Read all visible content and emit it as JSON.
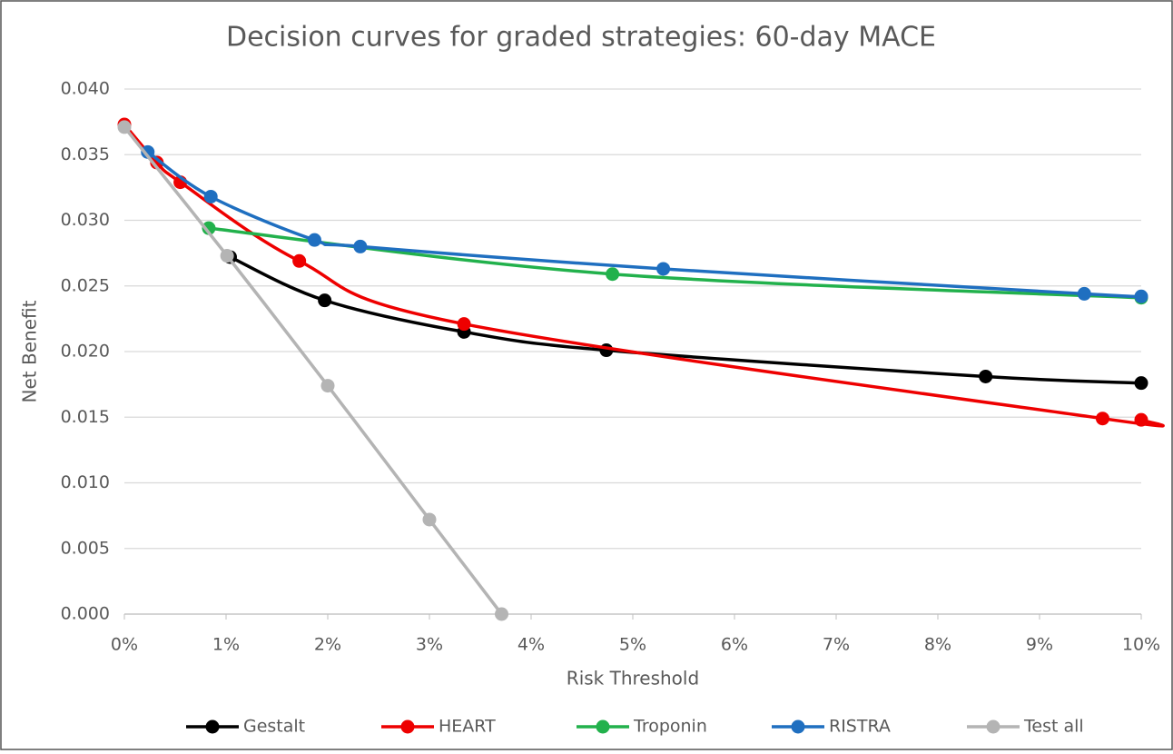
{
  "chart_data": {
    "type": "line",
    "title": "Decision curves for graded strategies: 60-day MACE",
    "x_label": "Risk Threshold",
    "y_label": "Net Benefit",
    "xlim": [
      0,
      10
    ],
    "xticks": [
      {
        "value": 0,
        "label": "0%"
      },
      {
        "value": 1,
        "label": "1%"
      },
      {
        "value": 2,
        "label": "2%"
      },
      {
        "value": 3,
        "label": "3%"
      },
      {
        "value": 4,
        "label": "4%"
      },
      {
        "value": 5,
        "label": "5%"
      },
      {
        "value": 6,
        "label": "6%"
      },
      {
        "value": 7,
        "label": "7%"
      },
      {
        "value": 8,
        "label": "8%"
      },
      {
        "value": 9,
        "label": "9%"
      },
      {
        "value": 10,
        "label": "10%"
      }
    ],
    "ylim": [
      0,
      0.04
    ],
    "yticks": [
      {
        "value": 0,
        "label": "0.000"
      },
      {
        "value": 0.005,
        "label": "0.005"
      },
      {
        "value": 0.01,
        "label": "0.010"
      },
      {
        "value": 0.015,
        "label": "0.015"
      },
      {
        "value": 0.02,
        "label": "0.020"
      },
      {
        "value": 0.025,
        "label": "0.025"
      },
      {
        "value": 0.03,
        "label": "0.030"
      },
      {
        "value": 0.035,
        "label": "0.035"
      },
      {
        "value": 0.04,
        "label": "0.040"
      }
    ],
    "grid": true,
    "legend": "bottom",
    "series": [
      {
        "name": "Gestalt",
        "color": "#000000",
        "x": [
          1.04,
          1.97,
          3.34,
          4.74,
          8.47,
          10
        ],
        "values": [
          0.0272,
          0.0239,
          0.0215,
          0.0201,
          0.0181,
          0.0176
        ]
      },
      {
        "name": "HEART",
        "color": "#ee0000",
        "x": [
          0,
          0.32,
          0.55,
          1.72,
          3.34,
          9.62,
          10
        ],
        "values": [
          0.0373,
          0.0344,
          0.0329,
          0.0269,
          0.0221,
          0.0149,
          0.0148
        ]
      },
      {
        "name": "Troponin",
        "color": "#22b14c",
        "x": [
          0.83,
          4.8,
          10
        ],
        "values": [
          0.0294,
          0.0259,
          0.0241
        ]
      },
      {
        "name": "RISTRA",
        "color": "#1f6fc0",
        "x": [
          0.23,
          0.85,
          1.87,
          2.32,
          5.3,
          9.44,
          10
        ],
        "values": [
          0.0352,
          0.0318,
          0.0285,
          0.028,
          0.0263,
          0.0244,
          0.0242
        ]
      },
      {
        "name": "Test all",
        "color": "#b4b4b4",
        "x": [
          0,
          1.01,
          2.0,
          3.0,
          3.71
        ],
        "values": [
          0.0371,
          0.0273,
          0.0174,
          0.0072,
          0
        ]
      }
    ]
  }
}
